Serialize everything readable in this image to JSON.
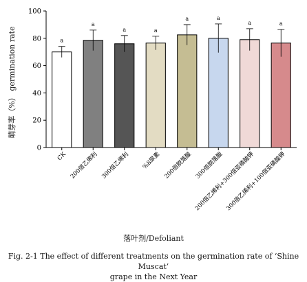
{
  "chart_data": {
    "type": "bar",
    "ylabel": "萌芽率（%） germination rate",
    "ylabel_cn": "萌芽率（%）",
    "ylabel_en": "germination rate",
    "xlabel": "落叶剂/Defoliant",
    "ylim": [
      0,
      100
    ],
    "yticks": [
      0,
      20,
      40,
      60,
      80,
      100
    ],
    "categories": [
      "CK",
      "200倍乙烯利",
      "300倍乙烯利",
      "%8尿素",
      "200倍脱落酸",
      "300倍脱落酸",
      "200倍乙烯利+300倍亚磷酸钾",
      "300倍乙烯利+100倍亚磷酸钾"
    ],
    "values": [
      70,
      78.5,
      76,
      76.5,
      82.5,
      80,
      79,
      76.5
    ],
    "errors": [
      4,
      7.5,
      6,
      5,
      7.5,
      10.5,
      8,
      10
    ],
    "significance": [
      "a",
      "a",
      "a",
      "a",
      "a",
      "a",
      "a",
      "a"
    ],
    "colors": [
      "#ffffff",
      "#808080",
      "#555555",
      "#e3dcc3",
      "#c5bd93",
      "#c7d7ee",
      "#f0d9d7",
      "#d68a8c"
    ]
  },
  "caption": {
    "line1": "Fig. 2-1 The effect of different treatments on the germination rate of ‘Shine Muscat’",
    "line2": "grape in the Next Year"
  }
}
